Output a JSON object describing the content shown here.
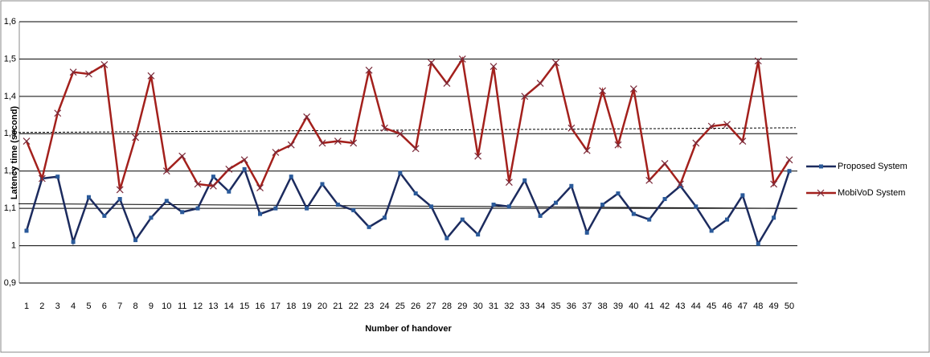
{
  "chart_data": {
    "type": "line",
    "x_label": "Number of handover",
    "y_label": "Latency time (second)",
    "categories": [
      1,
      2,
      3,
      4,
      5,
      6,
      7,
      8,
      9,
      10,
      11,
      12,
      13,
      14,
      15,
      16,
      17,
      18,
      19,
      20,
      21,
      22,
      23,
      24,
      25,
      26,
      27,
      28,
      29,
      30,
      31,
      32,
      33,
      34,
      35,
      36,
      37,
      38,
      39,
      40,
      41,
      42,
      43,
      44,
      45,
      46,
      47,
      48,
      49,
      50
    ],
    "series": [
      {
        "name": "Proposed System",
        "color": "#1c2b5e",
        "marker": "square",
        "values": [
          1.04,
          1.18,
          1.185,
          1.01,
          1.13,
          1.08,
          1.125,
          1.015,
          1.075,
          1.12,
          1.09,
          1.1,
          1.185,
          1.145,
          1.205,
          1.085,
          1.1,
          1.185,
          1.1,
          1.165,
          1.11,
          1.095,
          1.05,
          1.075,
          1.195,
          1.14,
          1.105,
          1.02,
          1.07,
          1.03,
          1.11,
          1.105,
          1.175,
          1.08,
          1.115,
          1.16,
          1.035,
          1.11,
          1.14,
          1.085,
          1.07,
          1.125,
          1.16,
          1.105,
          1.04,
          1.07,
          1.135,
          1.005,
          1.075,
          1.2
        ]
      },
      {
        "name": "MobiVoD System",
        "color": "#a3201c",
        "marker": "x",
        "values": [
          1.28,
          1.18,
          1.355,
          1.465,
          1.46,
          1.485,
          1.15,
          1.29,
          1.455,
          1.2,
          1.24,
          1.165,
          1.16,
          1.205,
          1.23,
          1.155,
          1.25,
          1.27,
          1.345,
          1.275,
          1.28,
          1.275,
          1.47,
          1.315,
          1.3,
          1.26,
          1.49,
          1.435,
          1.5,
          1.24,
          1.48,
          1.17,
          1.4,
          1.435,
          1.49,
          1.315,
          1.255,
          1.415,
          1.27,
          1.42,
          1.175,
          1.22,
          1.165,
          1.275,
          1.32,
          1.325,
          1.28,
          1.495,
          1.165,
          1.23
        ]
      }
    ],
    "ylim": [
      0.9,
      1.6
    ],
    "yticks": [
      {
        "value": 0.9,
        "label": "0,9"
      },
      {
        "value": 1,
        "label": "1"
      },
      {
        "value": 1.1,
        "label": "1,1"
      },
      {
        "value": 1.2,
        "label": "1,2"
      },
      {
        "value": 1.3,
        "label": "1,3"
      },
      {
        "value": 1.4,
        "label": "1,4"
      },
      {
        "value": 1.5,
        "label": "1,5"
      },
      {
        "value": 1.6,
        "label": "1,6"
      }
    ],
    "grid": true,
    "trendline": true,
    "legend": "right"
  }
}
